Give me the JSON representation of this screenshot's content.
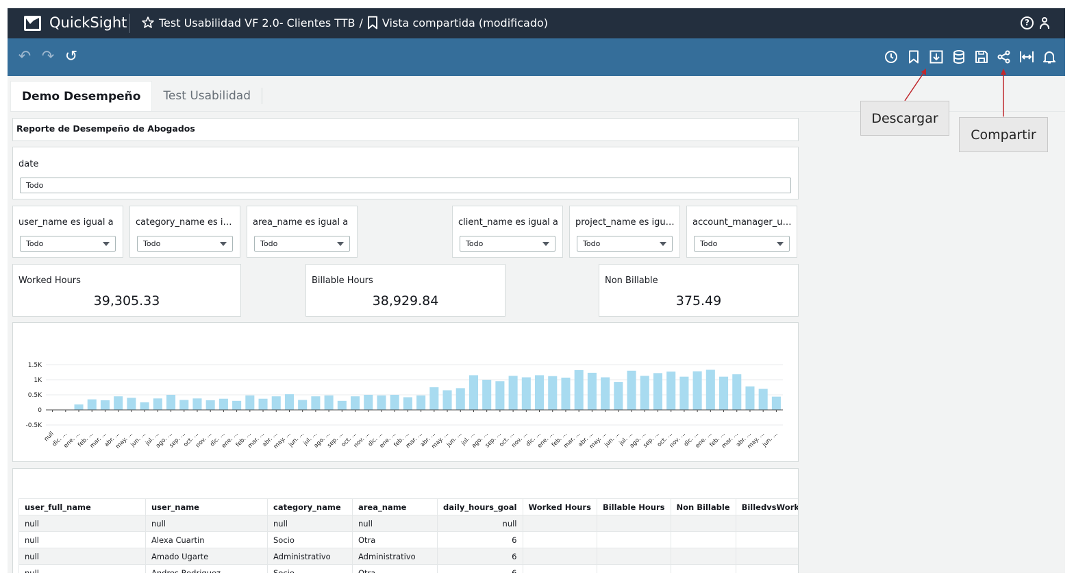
{
  "app": {
    "brand": "QuickSight",
    "breadcrumb_dashboard": "Test Usabilidad VF 2.0- Clientes TTB",
    "breadcrumb_separator": "/",
    "breadcrumb_view": "Vista compartida (modificado)"
  },
  "toolbar": {
    "left_icons": [
      "undo-icon",
      "redo-icon",
      "reset-icon"
    ],
    "right_icons": [
      "schedule-icon",
      "bookmark-icon",
      "download-icon",
      "dataset-icon",
      "save-icon",
      "share-icon",
      "fit-width-icon",
      "alert-icon"
    ]
  },
  "tabs": [
    {
      "label": "Demo Desempeño",
      "active": true
    },
    {
      "label": "Test Usabilidad",
      "active": false
    }
  ],
  "sheet": {
    "title": "Reporte de Desempeño de Abogados",
    "date_filter": {
      "label": "date",
      "value": "Todo"
    },
    "controls": [
      {
        "label": "user_name es igual a",
        "value": "Todo"
      },
      {
        "label": "category_name es igual a",
        "value": "Todo"
      },
      {
        "label": "area_name es igual a",
        "value": "Todo"
      },
      {
        "label": "client_name es igual a",
        "value": "Todo"
      },
      {
        "label": "project_name es igual a",
        "value": "Todo"
      },
      {
        "label": "account_manager_user_name es igual a",
        "value": "Todo"
      }
    ],
    "kpis": [
      {
        "label": "Worked Hours",
        "value": "39,305.33"
      },
      {
        "label": "Billable Hours",
        "value": "38,929.84"
      },
      {
        "label": "Non Billable",
        "value": "375.49"
      }
    ]
  },
  "chart_data": {
    "type": "bar",
    "title": "",
    "xlabel": "",
    "ylabel": "",
    "ylim": [
      -0.5,
      1.5
    ],
    "y_ticks": [
      "1.5K",
      "1K",
      "0.5K",
      "0",
      "-0.5K"
    ],
    "y_tick_values": [
      1.5,
      1.0,
      0.5,
      0,
      -0.5
    ],
    "categories": [
      "null",
      "dic. ...",
      "ene. ...",
      "feb. ...",
      "mar. ...",
      "abr. ...",
      "may. ...",
      "jun. ...",
      "jul. ...",
      "ago. ...",
      "sep. ...",
      "oct. ...",
      "nov. ...",
      "dic. ...",
      "ene. ...",
      "feb. ...",
      "mar. ...",
      "abr. ...",
      "may. ...",
      "jun. ...",
      "jul. ...",
      "ago. ...",
      "sep. ...",
      "oct. ...",
      "nov. ...",
      "dic. ...",
      "ene. ...",
      "feb. ...",
      "mar. ...",
      "abr. ...",
      "may. ...",
      "jun. ...",
      "jul. ...",
      "ago. ...",
      "sep. ...",
      "oct. ...",
      "nov. ...",
      "dic. ...",
      "ene. ...",
      "feb. ...",
      "mar. ...",
      "abr. ...",
      "may. ...",
      "jun. ...",
      "jul. ...",
      "ago. ...",
      "sep. ...",
      "oct. ...",
      "nov. ...",
      "dic. ...",
      "ene. ...",
      "feb. ...",
      "mar. ...",
      "abr. ...",
      "may. ...",
      "jun. ..."
    ],
    "values": [
      0,
      0,
      0.18,
      0.35,
      0.32,
      0.45,
      0.4,
      0.25,
      0.38,
      0.5,
      0.33,
      0.38,
      0.32,
      0.37,
      0.3,
      0.48,
      0.37,
      0.45,
      0.52,
      0.33,
      0.45,
      0.48,
      0.3,
      0.45,
      0.5,
      0.48,
      0.5,
      0.42,
      0.48,
      0.75,
      0.65,
      0.72,
      1.15,
      1.0,
      0.95,
      1.13,
      1.08,
      1.15,
      1.12,
      1.07,
      1.32,
      1.23,
      1.08,
      0.93,
      1.3,
      1.13,
      1.22,
      1.27,
      1.1,
      1.28,
      1.33,
      1.1,
      1.18,
      0.78,
      0.7,
      0.44
    ],
    "bar_color": "#a8dbf0",
    "grid": true
  },
  "table": {
    "columns": [
      "user_full_name",
      "user_name",
      "category_name",
      "area_name",
      "daily_hours_goal",
      "Worked Hours",
      "Billable Hours",
      "Non Billable",
      "BilledvsWorked"
    ],
    "rows": [
      [
        "null",
        "null",
        "null",
        "null",
        "null",
        "",
        "",
        "",
        ""
      ],
      [
        "null",
        "Alexa Cuartin",
        "Socio",
        "Otra",
        "6",
        "",
        "",
        "",
        ""
      ],
      [
        "null",
        "Amado Ugarte",
        "Administrativo",
        "Administrativo",
        "6",
        "",
        "",
        "",
        ""
      ],
      [
        "null",
        "Andres Rodriguez",
        "Socio",
        "Otra",
        "6",
        "",
        "",
        "",
        ""
      ]
    ]
  },
  "annotations": {
    "download_label": "Descargar",
    "share_label": "Compartir",
    "arrow_color": "#c0282d"
  },
  "colors": {
    "topbar": "#232f3e",
    "toolbar": "#356e9a"
  }
}
